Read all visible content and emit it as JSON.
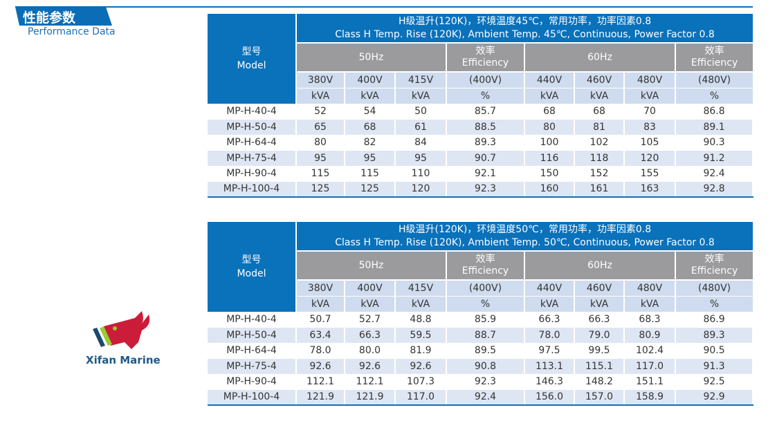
{
  "section": {
    "title_cn": "性能参数",
    "title_en": "Performance Data"
  },
  "watermark": "Xifan Marine",
  "header_common": {
    "model_cn": "型号",
    "model_en": "Model",
    "hz50": "50Hz",
    "hz60": "60Hz",
    "eff_cn": "效率",
    "eff_en": "Efficiency",
    "voltages": [
      "380V",
      "400V",
      "415V",
      "(400V)",
      "440V",
      "460V",
      "480V",
      "(480V)"
    ],
    "units": [
      "kVA",
      "kVA",
      "kVA",
      "%",
      "kVA",
      "kVA",
      "kVA",
      "%"
    ]
  },
  "tables": [
    {
      "title_cn": "H级温升(120K)，环境温度45℃，常用功率，功率因素0.8",
      "title_en": "Class H Temp. Rise (120K), Ambient Temp. 45℃, Continuous, Power Factor 0.8",
      "rows": [
        [
          "MP-H-40-4",
          "52",
          "54",
          "50",
          "85.7",
          "68",
          "68",
          "70",
          "86.8"
        ],
        [
          "MP-H-50-4",
          "65",
          "68",
          "61",
          "88.5",
          "80",
          "81",
          "83",
          "89.1"
        ],
        [
          "MP-H-64-4",
          "80",
          "82",
          "84",
          "89.3",
          "100",
          "102",
          "105",
          "90.3"
        ],
        [
          "MP-H-75-4",
          "95",
          "95",
          "95",
          "90.7",
          "116",
          "118",
          "120",
          "91.2"
        ],
        [
          "MP-H-90-4",
          "115",
          "115",
          "110",
          "92.1",
          "150",
          "152",
          "155",
          "92.4"
        ],
        [
          "MP-H-100-4",
          "125",
          "125",
          "120",
          "92.3",
          "160",
          "161",
          "163",
          "92.8"
        ]
      ]
    },
    {
      "title_cn": "H级温升(120K)，环境温度50℃，常用功率，功率因素0.8",
      "title_en": "Class H Temp. Rise (120K), Ambient Temp. 50℃, Continuous, Power Factor 0.8",
      "rows": [
        [
          "MP-H-40-4",
          "50.7",
          "52.7",
          "48.8",
          "85.9",
          "66.3",
          "66.3",
          "68.3",
          "86.9"
        ],
        [
          "MP-H-50-4",
          "63.4",
          "66.3",
          "59.5",
          "88.7",
          "78.0",
          "79.0",
          "80.9",
          "89.3"
        ],
        [
          "MP-H-64-4",
          "78.0",
          "80.0",
          "81.9",
          "89.5",
          "97.5",
          "99.5",
          "102.4",
          "90.5"
        ],
        [
          "MP-H-75-4",
          "92.6",
          "92.6",
          "92.6",
          "90.8",
          "113.1",
          "115.1",
          "117.0",
          "91.3"
        ],
        [
          "MP-H-90-4",
          "112.1",
          "112.1",
          "107.3",
          "92.3",
          "146.3",
          "148.2",
          "151.1",
          "92.5"
        ],
        [
          "MP-H-100-4",
          "121.9",
          "121.9",
          "117.0",
          "92.4",
          "156.0",
          "157.0",
          "158.9",
          "92.9"
        ]
      ]
    }
  ]
}
